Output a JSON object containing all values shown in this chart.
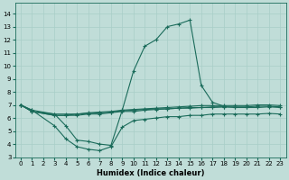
{
  "xlabel": "Humidex (Indice chaleur)",
  "bg_color": "#c0ddd8",
  "line_color": "#1a6b5a",
  "grid_color": "#a8cec8",
  "xlim": [
    -0.5,
    23.5
  ],
  "ylim": [
    3,
    14.8
  ],
  "xticks": [
    0,
    1,
    2,
    3,
    4,
    5,
    6,
    7,
    8,
    9,
    10,
    11,
    12,
    13,
    14,
    15,
    16,
    17,
    18,
    19,
    20,
    21,
    22,
    23
  ],
  "yticks": [
    3,
    4,
    5,
    6,
    7,
    8,
    9,
    10,
    11,
    12,
    13,
    14
  ],
  "series": [
    {
      "x": [
        0,
        1,
        3,
        4,
        5,
        6,
        7,
        8,
        9,
        10,
        11,
        12,
        13,
        14,
        15,
        16,
        17,
        18
      ],
      "y": [
        7.0,
        6.5,
        6.3,
        5.4,
        4.3,
        4.2,
        4.0,
        3.9,
        6.6,
        9.6,
        11.5,
        12.0,
        13.0,
        13.2,
        13.5,
        8.5,
        7.2,
        6.9
      ]
    },
    {
      "x": [
        0,
        1,
        3,
        4,
        5,
        6,
        7,
        8,
        9,
        10,
        11,
        12,
        13,
        14,
        15,
        16,
        17,
        18,
        19,
        20,
        21,
        22,
        23
      ],
      "y": [
        7.0,
        6.6,
        5.4,
        4.4,
        3.8,
        3.6,
        3.5,
        3.8,
        5.3,
        5.8,
        5.9,
        6.0,
        6.1,
        6.1,
        6.2,
        6.2,
        6.3,
        6.3,
        6.3,
        6.3,
        6.3,
        6.35,
        6.3
      ]
    },
    {
      "x": [
        0,
        1,
        3,
        4,
        5,
        6,
        7,
        8,
        9,
        10,
        11,
        12,
        13,
        14,
        15,
        16,
        17,
        18,
        19,
        20,
        21,
        22,
        23
      ],
      "y": [
        7.0,
        6.5,
        6.2,
        6.2,
        6.2,
        6.3,
        6.3,
        6.4,
        6.5,
        6.5,
        6.6,
        6.65,
        6.7,
        6.75,
        6.75,
        6.8,
        6.8,
        6.85,
        6.8,
        6.8,
        6.8,
        6.85,
        6.8
      ]
    },
    {
      "x": [
        0,
        1,
        3,
        4,
        5,
        6,
        7,
        8,
        9,
        10,
        11,
        12,
        13,
        14,
        15,
        16,
        17,
        18,
        19,
        20,
        21,
        22,
        23
      ],
      "y": [
        7.0,
        6.5,
        6.2,
        6.2,
        6.3,
        6.35,
        6.4,
        6.45,
        6.55,
        6.6,
        6.65,
        6.7,
        6.7,
        6.75,
        6.8,
        6.8,
        6.85,
        6.85,
        6.85,
        6.85,
        6.9,
        6.9,
        6.85
      ]
    },
    {
      "x": [
        0,
        1,
        3,
        4,
        5,
        6,
        7,
        8,
        9,
        10,
        11,
        12,
        13,
        14,
        15,
        16,
        17,
        18,
        19,
        20,
        21,
        22,
        23
      ],
      "y": [
        7.0,
        6.6,
        6.3,
        6.3,
        6.3,
        6.4,
        6.45,
        6.5,
        6.6,
        6.65,
        6.7,
        6.75,
        6.8,
        6.85,
        6.9,
        6.95,
        6.95,
        6.95,
        6.95,
        6.95,
        7.0,
        7.0,
        6.95
      ]
    }
  ]
}
